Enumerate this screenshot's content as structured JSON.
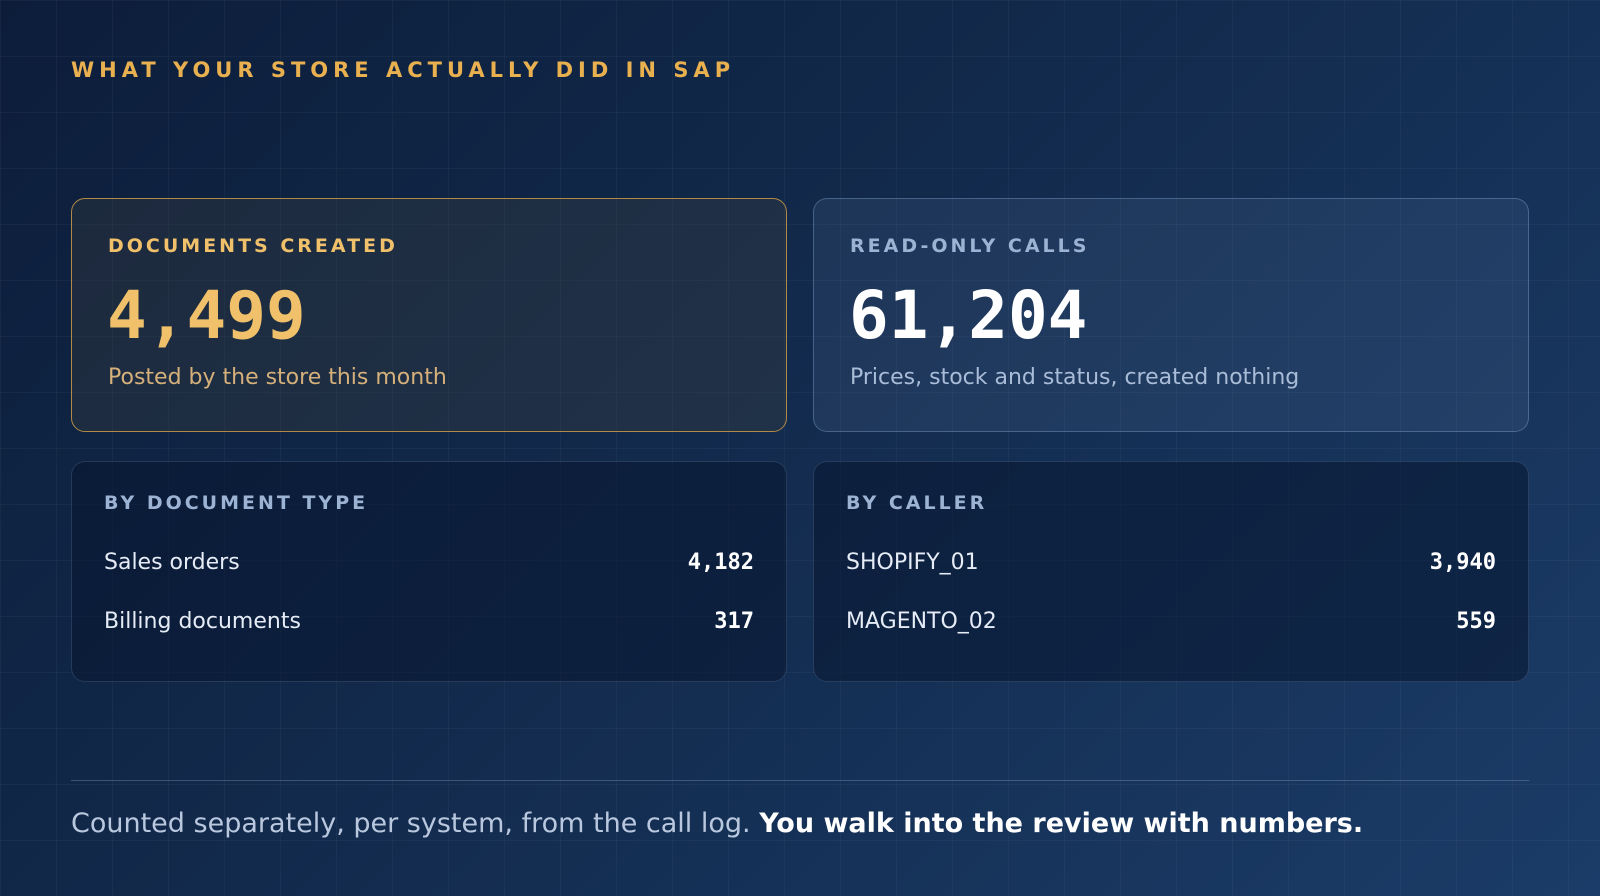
{
  "header": {
    "title": "WHAT YOUR STORE ACTUALLY DID IN SAP"
  },
  "cards": [
    {
      "label": "DOCUMENTS CREATED",
      "value": "4,499",
      "caption": "Posted by the store this month"
    },
    {
      "label": "READ-ONLY CALLS",
      "value": "61,204",
      "caption": "Prices, stock and status, created nothing"
    }
  ],
  "breakdowns": [
    {
      "title": "BY DOCUMENT TYPE",
      "rows": [
        {
          "label": "Sales orders",
          "value": "4,182"
        },
        {
          "label": "Billing documents",
          "value": "317"
        }
      ]
    },
    {
      "title": "BY CALLER",
      "rows": [
        {
          "label": "SHOPIFY_01",
          "value": "3,940"
        },
        {
          "label": "MAGENTO_02",
          "value": "559"
        }
      ]
    }
  ],
  "footer": {
    "text": "Counted separately, per system, from the call log.",
    "emphasis": "You walk into the review with numbers."
  }
}
